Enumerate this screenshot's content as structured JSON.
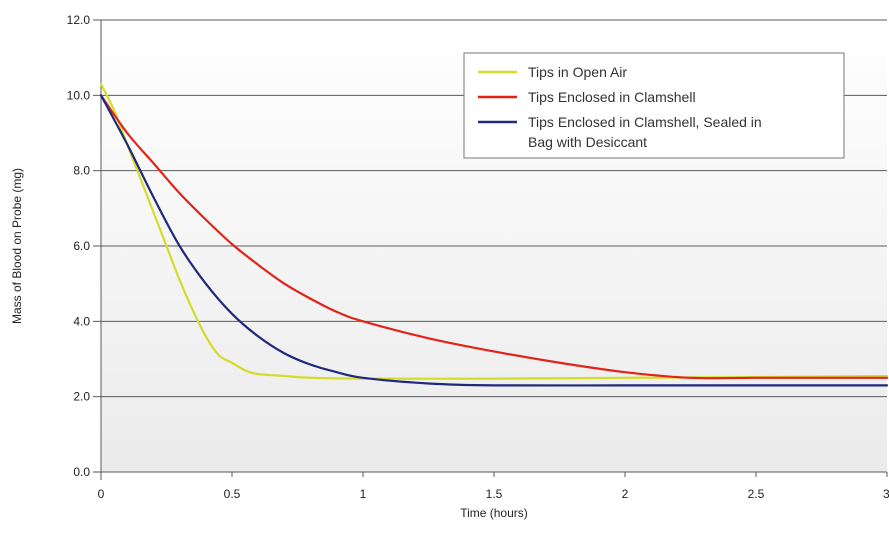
{
  "chart_data": {
    "type": "line",
    "xlabel": "Time (hours)",
    "ylabel": "Mass of Blood on Probe (mg)",
    "xlim": [
      0,
      3
    ],
    "ylim": [
      0,
      12
    ],
    "x_ticks": [
      0,
      0.5,
      1,
      1.5,
      2,
      2.5,
      3
    ],
    "x_tick_labels": [
      "0",
      "0.5",
      "1",
      "1.5",
      "2",
      "2.5",
      "3"
    ],
    "y_ticks": [
      0,
      2,
      4,
      6,
      8,
      10,
      12
    ],
    "y_tick_labels": [
      "0.0",
      "2.0",
      "4.0",
      "6.0",
      "8.0",
      "10.0",
      "12.0"
    ],
    "grid": "horizontal",
    "legend_position": "top-right",
    "series": [
      {
        "name": "Tips in Open Air",
        "color": "#d4dc2a",
        "x": [
          0,
          0.05,
          0.1,
          0.15,
          0.2,
          0.25,
          0.3,
          0.35,
          0.4,
          0.45,
          0.5,
          0.55,
          0.6,
          0.7,
          0.8,
          1.0,
          1.5,
          2.0,
          2.5,
          3.0
        ],
        "y": [
          10.3,
          9.6,
          8.7,
          7.8,
          6.9,
          6.0,
          5.1,
          4.3,
          3.6,
          3.1,
          2.9,
          2.7,
          2.6,
          2.55,
          2.5,
          2.48,
          2.48,
          2.5,
          2.52,
          2.55
        ]
      },
      {
        "name": "Tips Enclosed in Clamshell",
        "color": "#e2231a",
        "x": [
          0,
          0.1,
          0.2,
          0.3,
          0.4,
          0.5,
          0.6,
          0.7,
          0.8,
          0.9,
          1.0,
          1.25,
          1.5,
          1.75,
          2.0,
          2.25,
          2.5,
          3.0
        ],
        "y": [
          10.0,
          9.0,
          8.2,
          7.4,
          6.7,
          6.05,
          5.5,
          5.0,
          4.6,
          4.25,
          4.0,
          3.55,
          3.2,
          2.9,
          2.65,
          2.5,
          2.5,
          2.5
        ]
      },
      {
        "name": "Tips Enclosed in Clamshell, Sealed in Bag with Desiccant",
        "color": "#1f2a7a",
        "x": [
          0,
          0.1,
          0.2,
          0.3,
          0.4,
          0.5,
          0.6,
          0.7,
          0.8,
          0.9,
          1.0,
          1.25,
          1.5,
          2.0,
          2.5,
          3.0
        ],
        "y": [
          10.0,
          8.7,
          7.3,
          6.0,
          5.0,
          4.2,
          3.6,
          3.15,
          2.85,
          2.65,
          2.5,
          2.35,
          2.3,
          2.3,
          2.3,
          2.3
        ]
      }
    ]
  }
}
